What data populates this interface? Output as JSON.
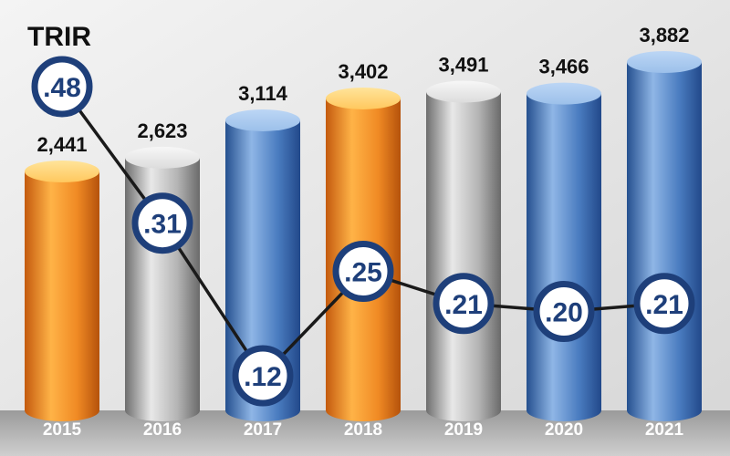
{
  "chart_data": {
    "type": "bar",
    "title": "TRIR",
    "categories": [
      "2015",
      "2016",
      "2017",
      "2018",
      "2019",
      "2020",
      "2021"
    ],
    "series": [
      {
        "values": [
          2441,
          2623,
          3114,
          3402,
          3491,
          3466,
          3882
        ]
      },
      {
        "name": "TRIR",
        "values": [
          0.48,
          0.31,
          0.12,
          0.25,
          0.21,
          0.2,
          0.21
        ]
      }
    ],
    "bar_labels": [
      "2,441",
      "2,623",
      "3,114",
      "3,402",
      "3,491",
      "3,466",
      "3,882"
    ],
    "trir_labels": [
      ".48",
      ".31",
      ".12",
      ".25",
      ".21",
      ".20",
      ".21"
    ],
    "bar_colors": [
      "orange",
      "gray",
      "blue",
      "orange",
      "gray",
      "blue",
      "blue"
    ],
    "colors": {
      "background": "#e6e6e6",
      "base_band": "#bdbdbd",
      "orange": "#f08a24",
      "gray": "#a6a6a6",
      "blue": "#3f72b5",
      "circle_border": "#1e3f7a",
      "line": "#1a1a1a"
    },
    "legend": "none",
    "grid": false
  }
}
